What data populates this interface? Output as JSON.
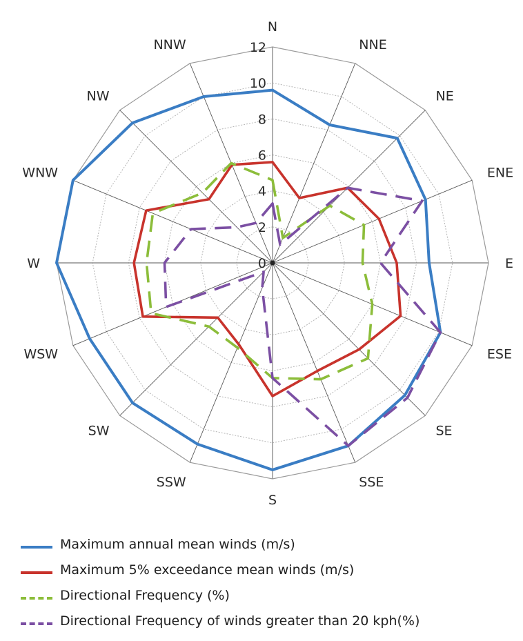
{
  "chart_data": {
    "type": "radar",
    "directions": [
      "N",
      "NNE",
      "NE",
      "ENE",
      "E",
      "ESE",
      "SE",
      "SSE",
      "S",
      "SSW",
      "SW",
      "WSW",
      "W",
      "WNW",
      "NW",
      "NNW"
    ],
    "r_ticks": [
      "0",
      "2",
      "4",
      "6",
      "8",
      "10",
      "12"
    ],
    "r_range": [
      0,
      12
    ],
    "grid": true,
    "legend_position": "bottom",
    "series": [
      {
        "name": "Maximum annual mean winds (m/s)",
        "color": "#3a7dc4",
        "dash": "solid",
        "values": [
          9.6,
          8.3,
          9.8,
          9.2,
          8.7,
          10.1,
          10.4,
          11.0,
          11.5,
          10.9,
          11.0,
          11.0,
          12.0,
          12.0,
          11.0,
          10.0
        ]
      },
      {
        "name": "Maximum 5% exceedance mean winds (m/s)",
        "color": "#c8332c",
        "dash": "solid",
        "values": [
          5.6,
          3.9,
          5.9,
          6.4,
          6.9,
          7.7,
          6.8,
          6.5,
          7.4,
          4.9,
          4.3,
          7.8,
          7.7,
          7.6,
          5.0,
          5.9
        ]
      },
      {
        "name": "Directional Frequency (%)",
        "color": "#8cbd3a",
        "dash": "dashed",
        "values": [
          4.6,
          1.5,
          4.5,
          5.5,
          5.0,
          6.0,
          7.5,
          7.0,
          6.4,
          5.1,
          5.0,
          7.3,
          7.0,
          7.2,
          5.5,
          6.0
        ]
      },
      {
        "name": "Directional Frequency  of winds greater than 20 kph(%)",
        "color": "#7b4fa3",
        "dash": "dashed",
        "values": [
          3.3,
          1.1,
          5.9,
          9.0,
          6.0,
          10.1,
          10.6,
          11.0,
          6.4,
          1.5,
          0.7,
          6.4,
          6.0,
          4.9,
          2.8,
          2.4
        ]
      }
    ]
  }
}
